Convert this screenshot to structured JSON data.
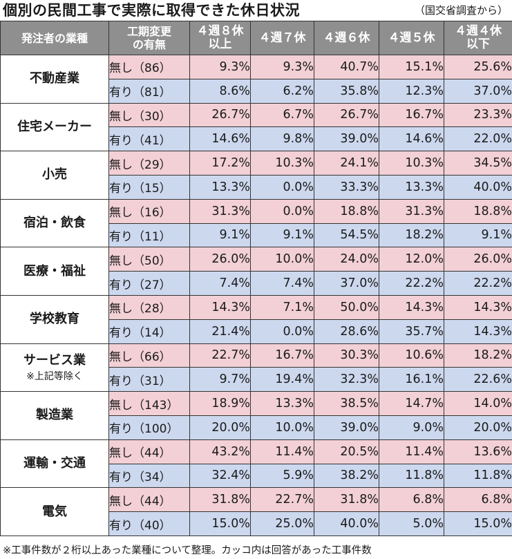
{
  "title": "個別の民間工事で実際に取得できた休日状況",
  "source": "（国交省調査から）",
  "footnote": "※工事件数が２桁以上あった業種について整理。カッコ内は回答があった工事件数",
  "colors": {
    "header_bg": "#8f8f8f",
    "nashi_row": "#f2d0d5",
    "ari_row": "#ccd8ee"
  },
  "chart_data": {
    "type": "table",
    "headers": [
      "発注者の業種",
      "工期変更の有無",
      "４週８休以上",
      "４週７休",
      "４週６休",
      "４週５休",
      "４週４休以下"
    ],
    "groups": [
      {
        "industry": "不動産業",
        "note": "",
        "rows": [
          {
            "category": "無し（86）",
            "values": [
              "9.3%",
              "9.3%",
              "40.7%",
              "15.1%",
              "25.6%"
            ]
          },
          {
            "category": "有り（81）",
            "values": [
              "8.6%",
              "6.2%",
              "35.8%",
              "12.3%",
              "37.0%"
            ]
          }
        ]
      },
      {
        "industry": "住宅メーカー",
        "note": "",
        "rows": [
          {
            "category": "無し（30）",
            "values": [
              "26.7%",
              "6.7%",
              "26.7%",
              "16.7%",
              "23.3%"
            ]
          },
          {
            "category": "有り（41）",
            "values": [
              "14.6%",
              "9.8%",
              "39.0%",
              "14.6%",
              "22.0%"
            ]
          }
        ]
      },
      {
        "industry": "小売",
        "note": "",
        "rows": [
          {
            "category": "無し（29）",
            "values": [
              "17.2%",
              "10.3%",
              "24.1%",
              "10.3%",
              "34.5%"
            ]
          },
          {
            "category": "有り（15）",
            "values": [
              "13.3%",
              "0.0%",
              "33.3%",
              "13.3%",
              "40.0%"
            ]
          }
        ]
      },
      {
        "industry": "宿泊・飲食",
        "note": "",
        "rows": [
          {
            "category": "無し（16）",
            "values": [
              "31.3%",
              "0.0%",
              "18.8%",
              "31.3%",
              "18.8%"
            ]
          },
          {
            "category": "有り（11）",
            "values": [
              "9.1%",
              "9.1%",
              "54.5%",
              "18.2%",
              "9.1%"
            ]
          }
        ]
      },
      {
        "industry": "医療・福祉",
        "note": "",
        "rows": [
          {
            "category": "無し（50）",
            "values": [
              "26.0%",
              "10.0%",
              "24.0%",
              "12.0%",
              "26.0%"
            ]
          },
          {
            "category": "有り（27）",
            "values": [
              "7.4%",
              "7.4%",
              "37.0%",
              "22.2%",
              "22.2%"
            ]
          }
        ]
      },
      {
        "industry": "学校教育",
        "note": "",
        "rows": [
          {
            "category": "無し（28）",
            "values": [
              "14.3%",
              "7.1%",
              "50.0%",
              "14.3%",
              "14.3%"
            ]
          },
          {
            "category": "有り（14）",
            "values": [
              "21.4%",
              "0.0%",
              "28.6%",
              "35.7%",
              "14.3%"
            ]
          }
        ]
      },
      {
        "industry": "サービス業",
        "note": "※上記等除く",
        "rows": [
          {
            "category": "無し（66）",
            "values": [
              "22.7%",
              "16.7%",
              "30.3%",
              "10.6%",
              "18.2%"
            ]
          },
          {
            "category": "有り（31）",
            "values": [
              "9.7%",
              "19.4%",
              "32.3%",
              "16.1%",
              "22.6%"
            ]
          }
        ]
      },
      {
        "industry": "製造業",
        "note": "",
        "rows": [
          {
            "category": "無し（143）",
            "values": [
              "18.9%",
              "13.3%",
              "38.5%",
              "14.7%",
              "14.0%"
            ]
          },
          {
            "category": "有り（100）",
            "values": [
              "20.0%",
              "10.0%",
              "39.0%",
              "9.0%",
              "20.0%"
            ]
          }
        ]
      },
      {
        "industry": "運輸・交通",
        "note": "",
        "rows": [
          {
            "category": "無し（44）",
            "values": [
              "43.2%",
              "11.4%",
              "20.5%",
              "11.4%",
              "13.6%"
            ]
          },
          {
            "category": "有り（34）",
            "values": [
              "32.4%",
              "5.9%",
              "38.2%",
              "11.8%",
              "11.8%"
            ]
          }
        ]
      },
      {
        "industry": "電気",
        "note": "",
        "rows": [
          {
            "category": "無し（44）",
            "values": [
              "31.8%",
              "22.7%",
              "31.8%",
              "6.8%",
              "6.8%"
            ]
          },
          {
            "category": "有り（40）",
            "values": [
              "15.0%",
              "25.0%",
              "40.0%",
              "5.0%",
              "15.0%"
            ]
          }
        ]
      }
    ]
  }
}
